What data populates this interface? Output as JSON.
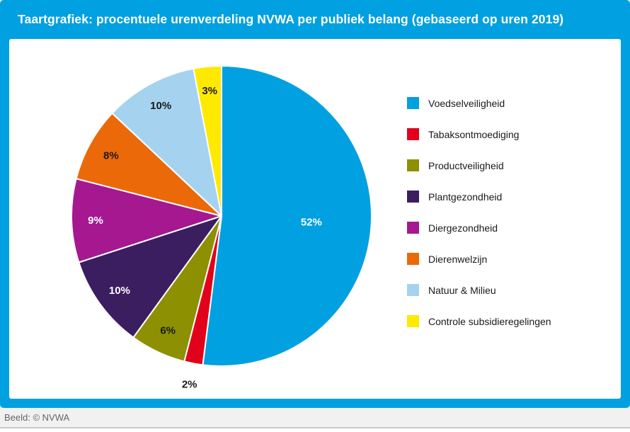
{
  "header": {
    "title": "Taartgrafiek: procentuele urenverdeling NVWA per publiek belang (gebaseerd op uren 2019)"
  },
  "footer": {
    "credit": "Beeld: © NVWA"
  },
  "colors": {
    "frame_blue": "#00a0e1",
    "title_text": "#ffffff",
    "panel_background": "#ffffff",
    "footer_background": "#f1f1f1",
    "footer_text": "#666666"
  },
  "chart_data": {
    "type": "pie",
    "title": "Taartgrafiek: procentuele urenverdeling NVWA per publiek belang (gebaseerd op uren 2019)",
    "value_suffix": "%",
    "start_angle_deg": -90,
    "direction": "clockwise",
    "legend_position": "right",
    "slices": [
      {
        "label": "Voedselveiligheid",
        "value": 52,
        "color": "#00a0e1",
        "text_color": "#ffffff"
      },
      {
        "label": "Tabaksontmoediging",
        "value": 2,
        "color": "#e2001a",
        "text_color": "#1a1a1a"
      },
      {
        "label": "Productveiligheid",
        "value": 6,
        "color": "#8d9000",
        "text_color": "#1a1a1a"
      },
      {
        "label": "Plantgezondheid",
        "value": 10,
        "color": "#3b1e5f",
        "text_color": "#ffffff"
      },
      {
        "label": "Diergezondheid",
        "value": 9,
        "color": "#a51890",
        "text_color": "#ffffff"
      },
      {
        "label": "Dierenwelzijn",
        "value": 8,
        "color": "#eb6909",
        "text_color": "#1a1a1a"
      },
      {
        "label": "Natuur & Milieu",
        "value": 10,
        "color": "#a5d3ef",
        "text_color": "#1a1a1a"
      },
      {
        "label": "Controle subsidieregelingen",
        "value": 3,
        "color": "#ffe900",
        "text_color": "#1a1a1a"
      }
    ]
  }
}
